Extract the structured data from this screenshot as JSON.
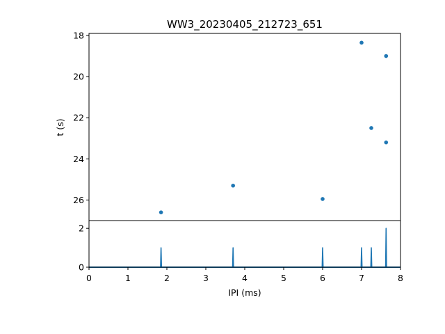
{
  "chart_data": [
    {
      "type": "scatter",
      "title": "WW3_20230405_212723_651",
      "xlabel": "",
      "ylabel": "t (s)",
      "xlim": [
        0,
        8
      ],
      "ylim": [
        27.0,
        17.9
      ],
      "y_inverted": true,
      "yticks": [
        "18",
        "20",
        "22",
        "24",
        "26"
      ],
      "grid": false,
      "color": "#1f77b4",
      "points": [
        {
          "x": 1.85,
          "y": 26.6
        },
        {
          "x": 3.7,
          "y": 25.3
        },
        {
          "x": 6.0,
          "y": 25.95
        },
        {
          "x": 7.0,
          "y": 18.35
        },
        {
          "x": 7.25,
          "y": 22.5
        },
        {
          "x": 7.63,
          "y": 19.0
        },
        {
          "x": 7.63,
          "y": 23.2
        }
      ]
    },
    {
      "type": "line",
      "title": "",
      "xlabel": "IPI (ms)",
      "ylabel": "",
      "xlim": [
        0,
        8
      ],
      "ylim": [
        0,
        2.4
      ],
      "xticks": [
        "0",
        "1",
        "2",
        "3",
        "4",
        "5",
        "6",
        "7",
        "8"
      ],
      "yticks": [
        "0",
        "2"
      ],
      "grid": false,
      "color": "#1f77b4",
      "baseline": 0,
      "peaks": [
        {
          "x": 1.85,
          "y": 1.0
        },
        {
          "x": 3.7,
          "y": 1.0
        },
        {
          "x": 6.0,
          "y": 1.0
        },
        {
          "x": 7.0,
          "y": 1.0
        },
        {
          "x": 7.25,
          "y": 1.0
        },
        {
          "x": 7.63,
          "y": 2.0
        }
      ]
    }
  ]
}
